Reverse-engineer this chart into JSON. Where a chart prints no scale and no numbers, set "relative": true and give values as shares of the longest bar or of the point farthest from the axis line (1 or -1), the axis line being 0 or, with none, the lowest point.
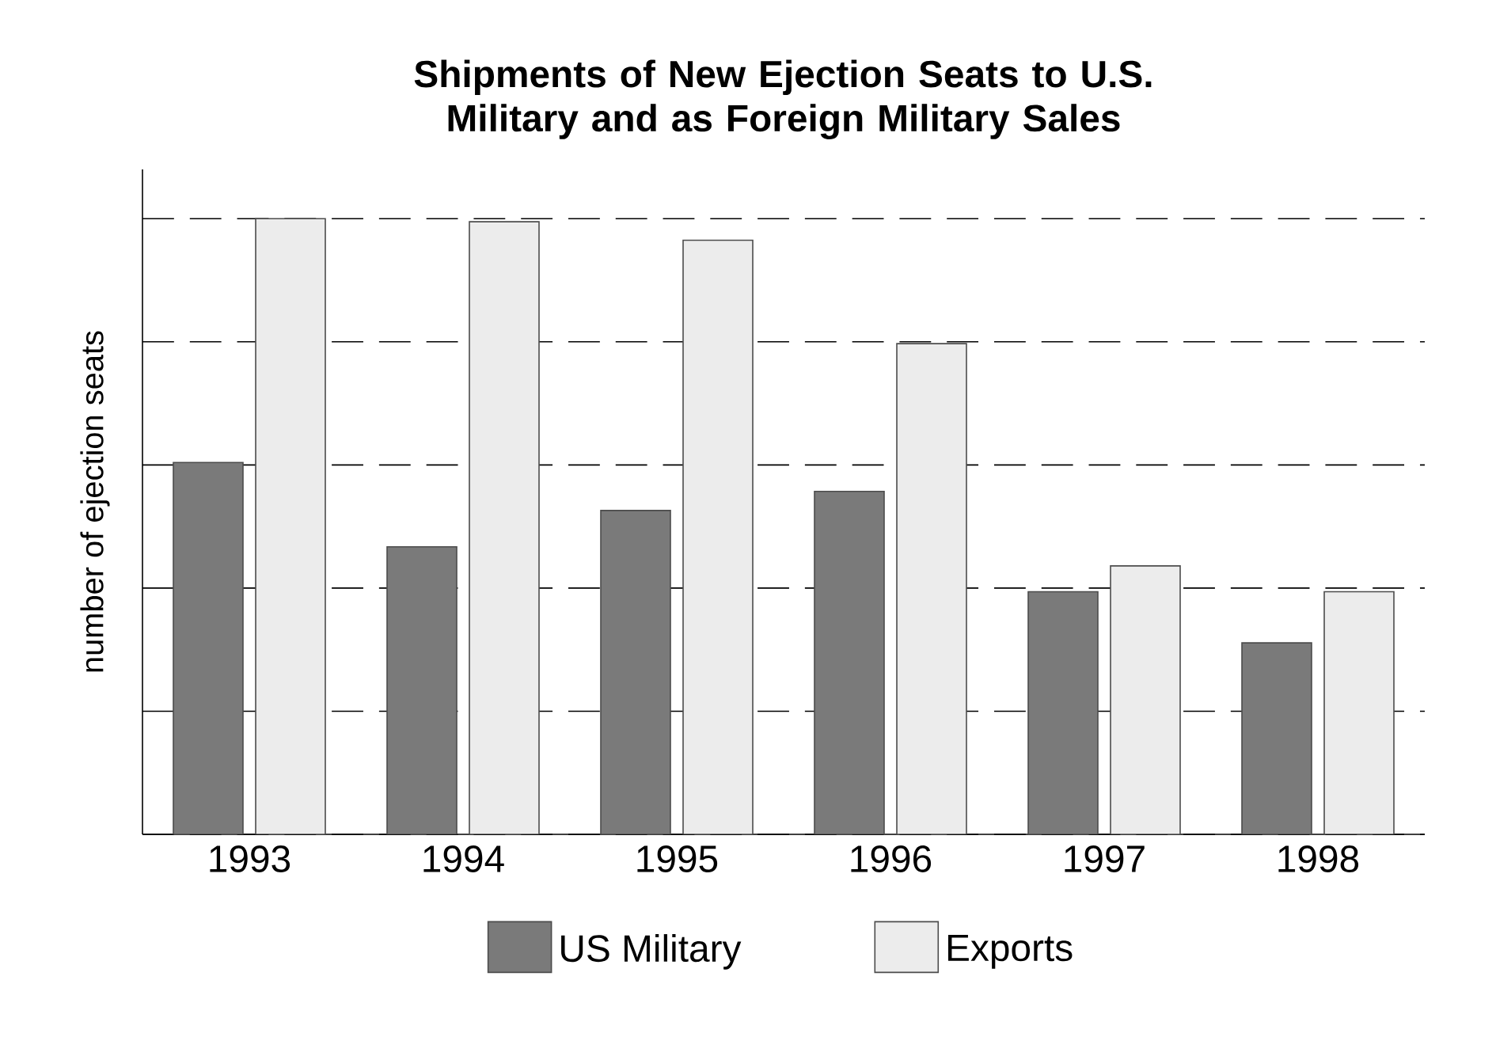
{
  "chart_data": {
    "type": "bar",
    "title": "Shipments of New Ejection Seats to U.S. Military and as Foreign Military Sales",
    "ylabel": "number of ejection seats",
    "relative": true,
    "categories": [
      "1993",
      "1994",
      "1995",
      "1996",
      "1997",
      "1998"
    ],
    "series": [
      {
        "name": "US Military",
        "color": "#7a7a7a",
        "values": [
          0.604,
          0.467,
          0.526,
          0.557,
          0.394,
          0.311
        ]
      },
      {
        "name": "Exports",
        "color": "#ececec",
        "values": [
          1,
          0.995,
          0.965,
          0.797,
          0.436,
          0.394
        ]
      }
    ],
    "grid": "y",
    "legend": "bottom"
  }
}
